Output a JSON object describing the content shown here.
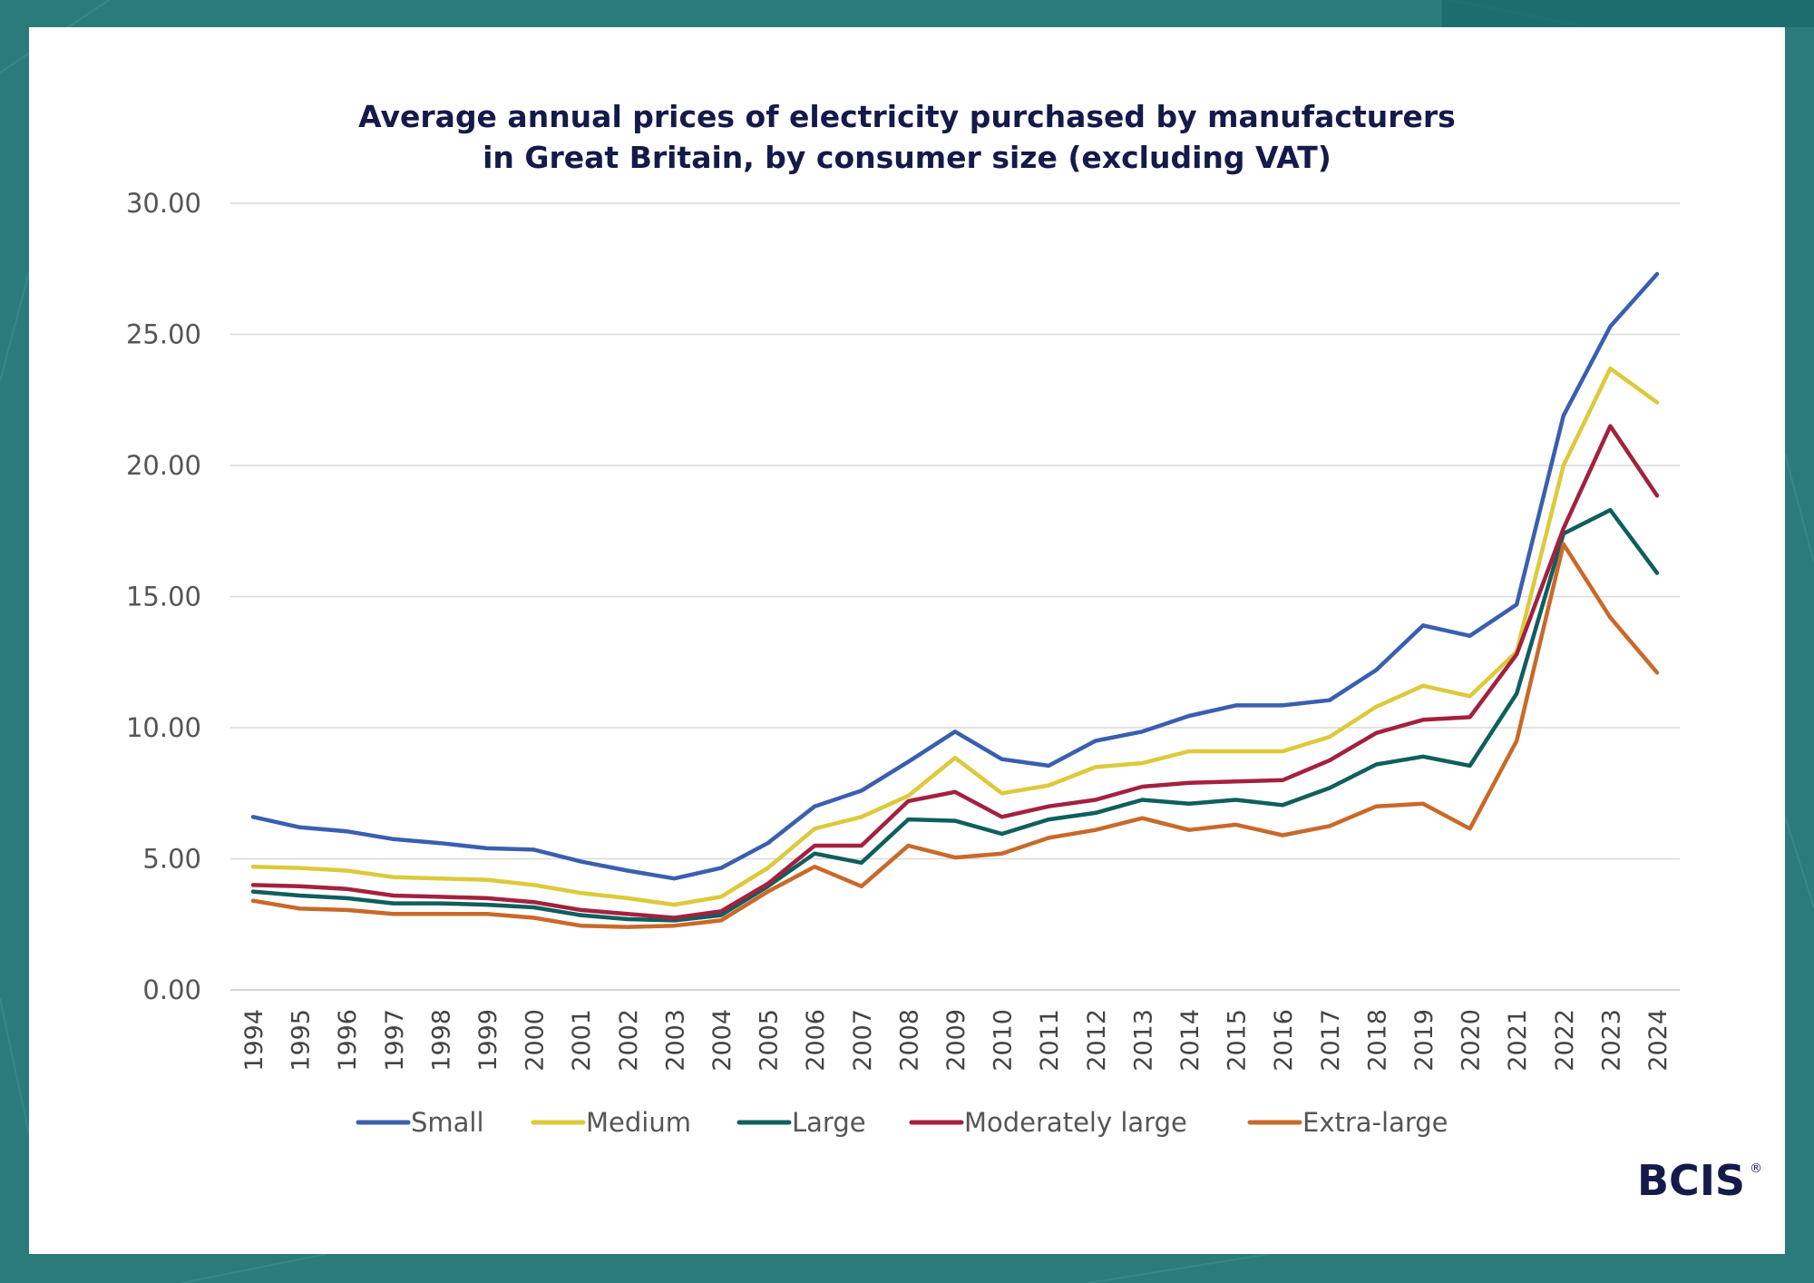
{
  "chart_data": {
    "type": "line",
    "title": [
      "Average annual prices of electricity purchased by manufacturers",
      "in Great Britain, by consumer size (excluding VAT)"
    ],
    "xlabel": "",
    "ylabel": "",
    "ylim": [
      0,
      30
    ],
    "yticks": [
      "0.00",
      "5.00",
      "10.00",
      "15.00",
      "20.00",
      "25.00",
      "30.00"
    ],
    "grid": true,
    "legend_position": "bottom",
    "categories": [
      "1994",
      "1995",
      "1996",
      "1997",
      "1998",
      "1999",
      "2000",
      "2001",
      "2002",
      "2003",
      "2004",
      "2005",
      "2006",
      "2007",
      "2008",
      "2009",
      "2010",
      "2011",
      "2012",
      "2013",
      "2014",
      "2015",
      "2016",
      "2017",
      "2018",
      "2019",
      "2020",
      "2021",
      "2022",
      "2023",
      "2024"
    ],
    "series": [
      {
        "name": "Small",
        "color": "#3a5fb0",
        "values": [
          6.6,
          6.2,
          6.05,
          5.75,
          5.6,
          5.4,
          5.35,
          4.9,
          4.55,
          4.25,
          4.65,
          5.6,
          7.0,
          7.6,
          8.7,
          9.85,
          8.8,
          8.55,
          9.5,
          9.85,
          10.45,
          10.85,
          10.85,
          11.05,
          12.2,
          13.9,
          13.5,
          14.7,
          21.9,
          25.3,
          27.3
        ]
      },
      {
        "name": "Medium",
        "color": "#ddc93a",
        "values": [
          4.7,
          4.65,
          4.55,
          4.3,
          4.25,
          4.2,
          4.0,
          3.7,
          3.5,
          3.25,
          3.55,
          4.65,
          6.15,
          6.6,
          7.4,
          8.85,
          7.5,
          7.8,
          8.5,
          8.65,
          9.1,
          9.1,
          9.1,
          9.65,
          10.8,
          11.6,
          11.2,
          12.9,
          20.0,
          23.7,
          22.4
        ]
      },
      {
        "name": "Large",
        "color": "#0e5f5d",
        "values": [
          3.75,
          3.6,
          3.5,
          3.3,
          3.3,
          3.25,
          3.15,
          2.85,
          2.7,
          2.65,
          2.85,
          3.95,
          5.2,
          4.85,
          6.5,
          6.45,
          5.95,
          6.5,
          6.75,
          7.25,
          7.1,
          7.25,
          7.05,
          7.7,
          8.6,
          8.9,
          8.55,
          11.3,
          17.4,
          18.3,
          15.9
        ]
      },
      {
        "name": "Moderately large",
        "color": "#a3213f",
        "values": [
          4.0,
          3.95,
          3.85,
          3.6,
          3.55,
          3.5,
          3.35,
          3.05,
          2.9,
          2.75,
          3.0,
          4.05,
          5.5,
          5.5,
          7.2,
          7.55,
          6.6,
          7.0,
          7.25,
          7.75,
          7.9,
          7.95,
          8.0,
          8.75,
          9.8,
          10.3,
          10.4,
          12.8,
          17.6,
          21.5,
          18.85
        ]
      },
      {
        "name": "Extra-large",
        "color": "#c9692a",
        "values": [
          3.4,
          3.1,
          3.05,
          2.9,
          2.9,
          2.9,
          2.75,
          2.45,
          2.4,
          2.45,
          2.65,
          3.75,
          4.7,
          3.95,
          5.5,
          5.05,
          5.2,
          5.8,
          6.1,
          6.55,
          6.1,
          6.3,
          5.9,
          6.25,
          7.0,
          7.1,
          6.15,
          9.5,
          17.0,
          14.2,
          12.1
        ]
      }
    ]
  },
  "logo": {
    "text": "BCIS",
    "mark": "®"
  }
}
